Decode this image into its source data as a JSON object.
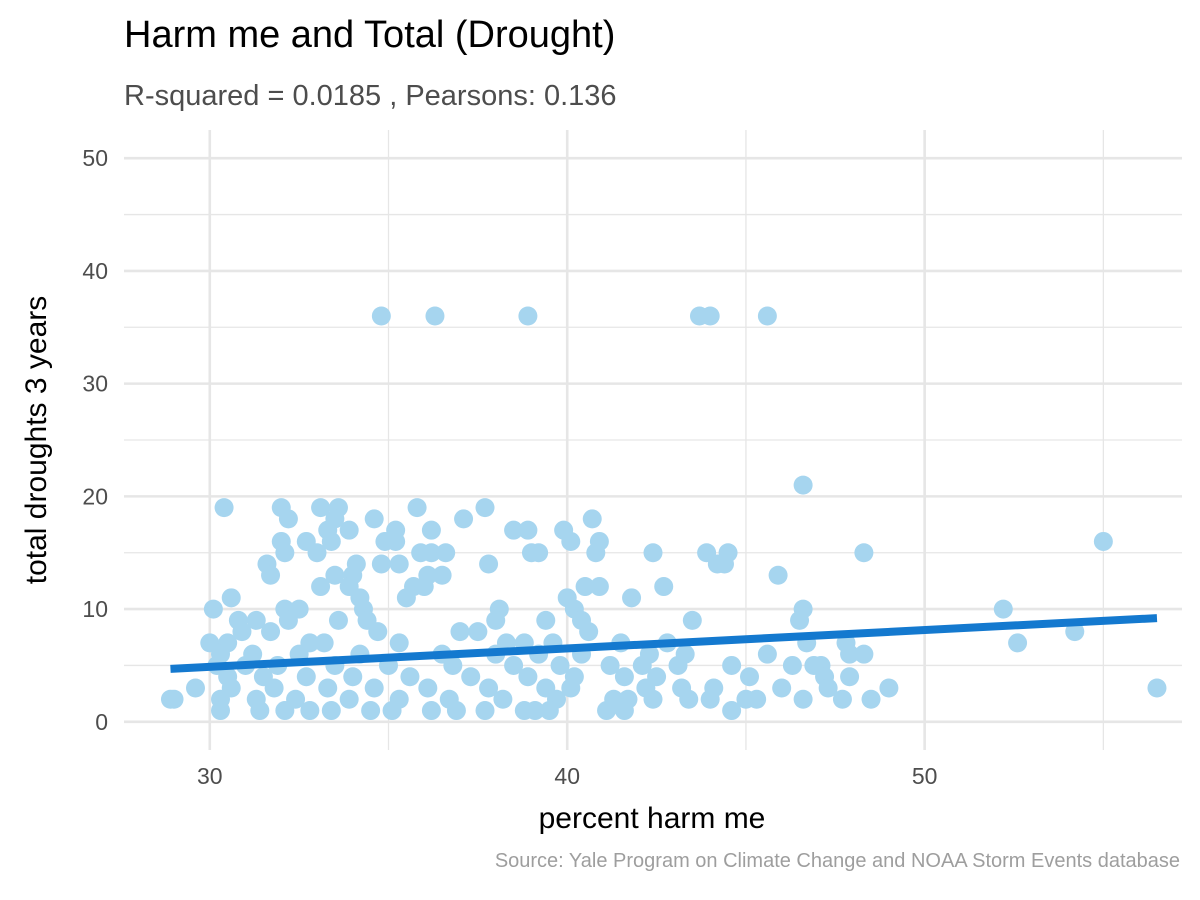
{
  "chart_data": {
    "type": "scatter",
    "title": "Harm me and Total (Drought)",
    "subtitle": "R-squared =  0.0185 , Pearsons: 0.136",
    "caption": "Source: Yale Program on Climate Change and NOAA Storm Events database",
    "xlabel": "percent harm me",
    "ylabel": "total droughts 3 years",
    "xlim": [
      27.6,
      57.2
    ],
    "ylim": [
      -2.5,
      52.5
    ],
    "x_ticks": [
      30,
      40,
      50
    ],
    "y_ticks": [
      0,
      10,
      20,
      30,
      40,
      50
    ],
    "grid": true,
    "colors": {
      "points": "#a6d5ef",
      "fit_line": "#1479cf",
      "grid": "#e6e6e6"
    },
    "trend_line": {
      "x": [
        28.9,
        56.5
      ],
      "y": [
        4.7,
        9.2
      ]
    },
    "points": [
      [
        34.8,
        36
      ],
      [
        36.3,
        36
      ],
      [
        38.9,
        36
      ],
      [
        43.7,
        36
      ],
      [
        44.0,
        36
      ],
      [
        45.6,
        36
      ],
      [
        46.6,
        21
      ],
      [
        30.4,
        19
      ],
      [
        32.0,
        19
      ],
      [
        33.1,
        19
      ],
      [
        33.6,
        19
      ],
      [
        35.8,
        19
      ],
      [
        37.7,
        19
      ],
      [
        32.2,
        18
      ],
      [
        33.5,
        18
      ],
      [
        34.6,
        18
      ],
      [
        37.1,
        18
      ],
      [
        40.7,
        18
      ],
      [
        33.3,
        17
      ],
      [
        33.9,
        17
      ],
      [
        35.2,
        17
      ],
      [
        36.2,
        17
      ],
      [
        38.5,
        17
      ],
      [
        38.9,
        17
      ],
      [
        39.9,
        17
      ],
      [
        32.0,
        16
      ],
      [
        32.7,
        16
      ],
      [
        33.4,
        16
      ],
      [
        34.9,
        16
      ],
      [
        35.2,
        16
      ],
      [
        40.1,
        16
      ],
      [
        40.9,
        16
      ],
      [
        55.0,
        16
      ],
      [
        32.1,
        15
      ],
      [
        33.0,
        15
      ],
      [
        35.9,
        15
      ],
      [
        36.2,
        15
      ],
      [
        36.6,
        15
      ],
      [
        39.0,
        15
      ],
      [
        39.2,
        15
      ],
      [
        40.8,
        15
      ],
      [
        42.4,
        15
      ],
      [
        43.9,
        15
      ],
      [
        44.5,
        15
      ],
      [
        48.3,
        15
      ],
      [
        31.6,
        14
      ],
      [
        34.1,
        14
      ],
      [
        34.8,
        14
      ],
      [
        35.3,
        14
      ],
      [
        37.8,
        14
      ],
      [
        44.2,
        14
      ],
      [
        44.4,
        14
      ],
      [
        31.7,
        13
      ],
      [
        33.5,
        13
      ],
      [
        34.0,
        13
      ],
      [
        36.1,
        13
      ],
      [
        36.5,
        13
      ],
      [
        45.9,
        13
      ],
      [
        33.1,
        12
      ],
      [
        33.9,
        12
      ],
      [
        35.7,
        12
      ],
      [
        36.0,
        12
      ],
      [
        40.5,
        12
      ],
      [
        40.9,
        12
      ],
      [
        42.7,
        12
      ],
      [
        30.6,
        11
      ],
      [
        34.2,
        11
      ],
      [
        35.5,
        11
      ],
      [
        40.0,
        11
      ],
      [
        41.8,
        11
      ],
      [
        30.1,
        10
      ],
      [
        32.1,
        10
      ],
      [
        32.5,
        10
      ],
      [
        34.3,
        10
      ],
      [
        38.1,
        10
      ],
      [
        40.2,
        10
      ],
      [
        46.6,
        10
      ],
      [
        52.2,
        10
      ],
      [
        30.8,
        9
      ],
      [
        31.3,
        9
      ],
      [
        32.2,
        9
      ],
      [
        33.6,
        9
      ],
      [
        34.4,
        9
      ],
      [
        38.0,
        9
      ],
      [
        39.4,
        9
      ],
      [
        40.4,
        9
      ],
      [
        43.5,
        9
      ],
      [
        46.5,
        9
      ],
      [
        30.9,
        8
      ],
      [
        31.7,
        8
      ],
      [
        34.7,
        8
      ],
      [
        37.0,
        8
      ],
      [
        37.5,
        8
      ],
      [
        40.6,
        8
      ],
      [
        54.2,
        8
      ],
      [
        30.0,
        7
      ],
      [
        30.5,
        7
      ],
      [
        32.8,
        7
      ],
      [
        33.2,
        7
      ],
      [
        35.3,
        7
      ],
      [
        38.3,
        7
      ],
      [
        38.8,
        7
      ],
      [
        39.6,
        7
      ],
      [
        41.5,
        7
      ],
      [
        42.8,
        7
      ],
      [
        46.7,
        7
      ],
      [
        47.8,
        7
      ],
      [
        52.6,
        7
      ],
      [
        30.3,
        6
      ],
      [
        31.2,
        6
      ],
      [
        32.5,
        6
      ],
      [
        34.2,
        6
      ],
      [
        36.5,
        6
      ],
      [
        38.0,
        6
      ],
      [
        39.2,
        6
      ],
      [
        40.4,
        6
      ],
      [
        42.3,
        6
      ],
      [
        43.3,
        6
      ],
      [
        45.6,
        6
      ],
      [
        47.9,
        6
      ],
      [
        48.3,
        6
      ],
      [
        30.2,
        5
      ],
      [
        31.0,
        5
      ],
      [
        31.9,
        5
      ],
      [
        33.5,
        5
      ],
      [
        35.0,
        5
      ],
      [
        36.8,
        5
      ],
      [
        38.5,
        5
      ],
      [
        39.8,
        5
      ],
      [
        41.2,
        5
      ],
      [
        42.1,
        5
      ],
      [
        43.1,
        5
      ],
      [
        44.6,
        5
      ],
      [
        46.3,
        5
      ],
      [
        46.9,
        5
      ],
      [
        47.1,
        5
      ],
      [
        30.5,
        4
      ],
      [
        31.5,
        4
      ],
      [
        32.7,
        4
      ],
      [
        34.0,
        4
      ],
      [
        35.6,
        4
      ],
      [
        37.3,
        4
      ],
      [
        38.9,
        4
      ],
      [
        40.2,
        4
      ],
      [
        41.6,
        4
      ],
      [
        42.5,
        4
      ],
      [
        45.1,
        4
      ],
      [
        47.2,
        4
      ],
      [
        47.9,
        4
      ],
      [
        29.6,
        3
      ],
      [
        30.6,
        3
      ],
      [
        31.8,
        3
      ],
      [
        33.3,
        3
      ],
      [
        34.6,
        3
      ],
      [
        36.1,
        3
      ],
      [
        37.8,
        3
      ],
      [
        39.4,
        3
      ],
      [
        40.1,
        3
      ],
      [
        42.2,
        3
      ],
      [
        43.2,
        3
      ],
      [
        44.1,
        3
      ],
      [
        46.0,
        3
      ],
      [
        47.3,
        3
      ],
      [
        49.0,
        3
      ],
      [
        56.5,
        3
      ],
      [
        28.9,
        2
      ],
      [
        29.0,
        2
      ],
      [
        30.3,
        2
      ],
      [
        31.3,
        2
      ],
      [
        32.4,
        2
      ],
      [
        33.9,
        2
      ],
      [
        35.3,
        2
      ],
      [
        36.7,
        2
      ],
      [
        38.2,
        2
      ],
      [
        39.7,
        2
      ],
      [
        41.3,
        2
      ],
      [
        41.7,
        2
      ],
      [
        42.4,
        2
      ],
      [
        43.4,
        2
      ],
      [
        44.0,
        2
      ],
      [
        45.0,
        2
      ],
      [
        45.3,
        2
      ],
      [
        46.6,
        2
      ],
      [
        47.7,
        2
      ],
      [
        48.5,
        2
      ],
      [
        30.3,
        1
      ],
      [
        31.4,
        1
      ],
      [
        32.1,
        1
      ],
      [
        32.8,
        1
      ],
      [
        33.4,
        1
      ],
      [
        34.5,
        1
      ],
      [
        35.1,
        1
      ],
      [
        36.2,
        1
      ],
      [
        36.9,
        1
      ],
      [
        37.7,
        1
      ],
      [
        38.8,
        1
      ],
      [
        39.1,
        1
      ],
      [
        39.5,
        1
      ],
      [
        41.1,
        1
      ],
      [
        41.6,
        1
      ],
      [
        44.6,
        1
      ]
    ]
  }
}
